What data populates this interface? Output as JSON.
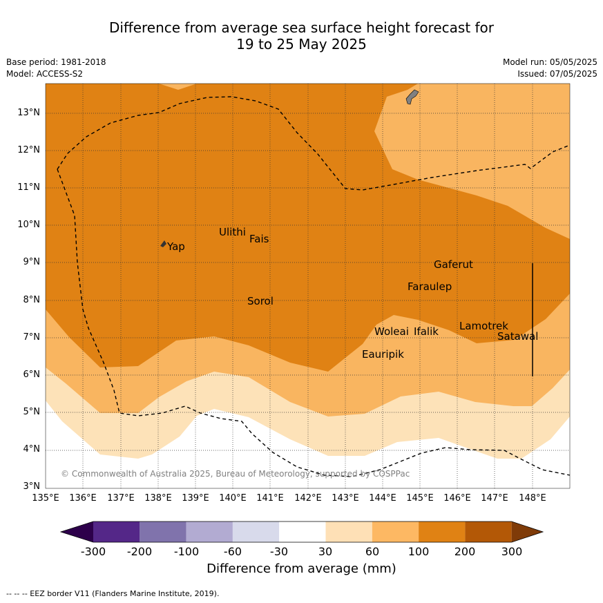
{
  "title": {
    "line1": "Difference from average sea surface height forecast for",
    "line2": "19 to 25 May 2025"
  },
  "meta": {
    "base_period": "Base period: 1981-2018",
    "model": "Model: ACCESS-S2",
    "model_run": "Model run: 05/05/2025",
    "issued": "Issued: 07/05/2025"
  },
  "map": {
    "lon_labels": [
      "135°E",
      "136°E",
      "137°E",
      "138°E",
      "139°E",
      "140°E",
      "141°E",
      "142°E",
      "143°E",
      "144°E",
      "145°E",
      "146°E",
      "147°E",
      "148°E"
    ],
    "lat_labels": [
      "13°N",
      "12°N",
      "11°N",
      "10°N",
      "9°N",
      "8°N",
      "7°N",
      "6°N",
      "5°N",
      "4°N",
      "3°N"
    ],
    "places": [
      {
        "name": "Yap",
        "lon": 138.1,
        "lat": 9.5
      },
      {
        "name": "Ulithi",
        "lon": 139.7,
        "lat": 9.9
      },
      {
        "name": "Fais",
        "lon": 140.5,
        "lat": 9.75
      },
      {
        "name": "Sorol",
        "lon": 140.4,
        "lat": 8.1
      },
      {
        "name": "Gaferut",
        "lon": 145.4,
        "lat": 9.0
      },
      {
        "name": "Faraulep",
        "lon": 144.7,
        "lat": 8.4
      },
      {
        "name": "Woleai",
        "lon": 143.8,
        "lat": 7.3
      },
      {
        "name": "Ifalik",
        "lon": 144.7,
        "lat": 7.3
      },
      {
        "name": "Eauripik",
        "lon": 143.3,
        "lat": 6.6
      },
      {
        "name": "Lamotrek",
        "lon": 146.1,
        "lat": 7.4
      },
      {
        "name": "Satawal",
        "lon": 147.0,
        "lat": 7.1
      }
    ],
    "copyright": "© Commonwealth of Australia 2025, Bureau of Meteorology, supported by COSPPac",
    "colors": {
      "band_30_60": "#fde2b8",
      "band_60_100": "#f9b560",
      "band_100_200": "#e08214",
      "land": "#808080",
      "eez_line": "#000000"
    }
  },
  "colorbar": {
    "ticks": [
      "-300",
      "-200",
      "-100",
      "-60",
      "-30",
      "30",
      "60",
      "100",
      "200",
      "300"
    ],
    "label": "Difference from average (mm)",
    "colors": [
      "#2d004b",
      "#542788",
      "#8073ac",
      "#b2abd2",
      "#d8daeb",
      "#ffffff",
      "#fee0b6",
      "#fdb863",
      "#e08214",
      "#b35806",
      "#7f3b08"
    ]
  },
  "footer": "--  --  -- EEZ border V11 (Flanders Marine Institute, 2019)."
}
